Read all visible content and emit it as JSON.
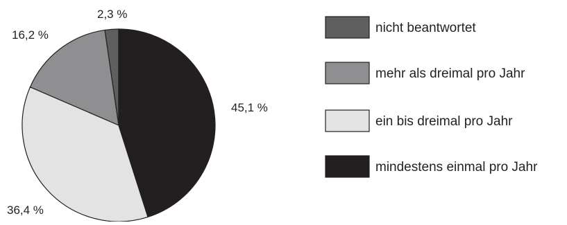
{
  "chart_data": {
    "type": "pie",
    "title": "",
    "slices": [
      {
        "label": "nicht beantwortet",
        "value": 2.3,
        "display": "2,3 %",
        "color": "#5f5f5f"
      },
      {
        "label": "mehr als dreimal pro Jahr",
        "value": 16.2,
        "display": "16,2 %",
        "color": "#8f8f91"
      },
      {
        "label": "ein bis dreimal pro Jahr",
        "value": 36.4,
        "display": "36,4 %",
        "color": "#e3e3e4"
      },
      {
        "label": "mindestens einmal pro Jahr",
        "value": 45.1,
        "display": "45,1 %",
        "color": "#231f20"
      }
    ],
    "start": "top",
    "direction": "counterclockwise",
    "legend_position": "right"
  }
}
